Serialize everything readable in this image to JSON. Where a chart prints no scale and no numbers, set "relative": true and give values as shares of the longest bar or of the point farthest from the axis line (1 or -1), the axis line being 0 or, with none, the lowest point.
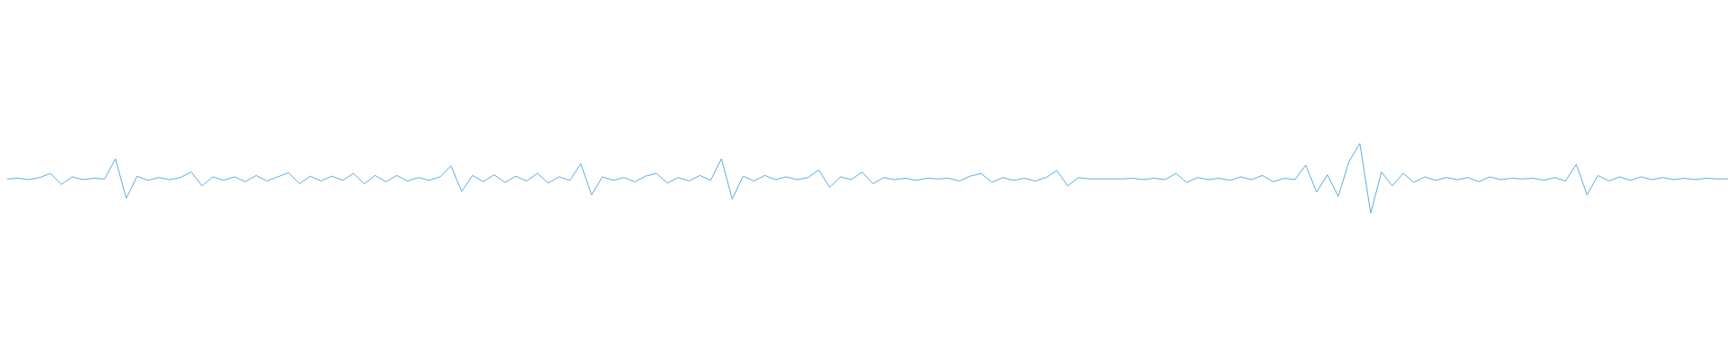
{
  "chart_data": {
    "type": "line",
    "relative": true,
    "color": "#5dade2",
    "marker": "none",
    "grid": false,
    "legend": false,
    "categories": [
      null,
      null,
      null,
      null,
      null,
      null,
      null,
      null,
      null,
      null,
      null,
      null,
      null,
      null,
      null,
      null,
      null,
      null,
      null,
      null,
      null,
      null,
      null,
      null,
      null,
      null,
      null,
      null,
      null,
      null,
      null,
      null,
      null,
      null,
      null,
      null,
      null,
      null,
      null,
      null,
      null,
      null,
      null,
      null,
      null,
      null,
      null,
      null,
      null,
      null,
      null,
      null,
      null,
      null,
      null,
      null,
      null,
      null,
      null,
      null,
      null,
      null,
      null,
      null,
      null,
      null,
      null,
      null,
      null,
      null,
      null,
      null,
      null,
      null,
      null,
      null,
      null,
      null,
      null,
      null,
      null,
      null,
      null,
      null,
      null,
      null,
      null,
      null,
      null,
      null,
      null,
      null,
      null,
      null,
      null,
      null,
      null,
      null,
      null,
      null,
      null,
      null,
      null,
      null,
      null,
      null,
      null,
      null,
      null,
      null,
      null,
      null,
      null,
      null,
      null,
      null,
      null,
      null,
      null,
      null,
      null,
      null,
      null,
      null,
      null,
      null,
      null,
      null,
      null,
      null,
      null,
      null,
      null,
      null,
      null,
      null,
      null,
      null,
      null,
      null,
      null,
      null,
      null,
      null,
      null,
      null,
      null,
      null,
      null,
      null,
      null,
      null,
      null,
      null,
      null,
      null,
      null,
      null,
      null,
      null
    ],
    "values": [
      0.49,
      0.5,
      0.48,
      0.51,
      0.57,
      0.41,
      0.52,
      0.48,
      0.5,
      0.49,
      0.78,
      0.21,
      0.53,
      0.47,
      0.51,
      0.48,
      0.51,
      0.59,
      0.39,
      0.52,
      0.47,
      0.52,
      0.45,
      0.54,
      0.46,
      0.52,
      0.58,
      0.42,
      0.53,
      0.46,
      0.53,
      0.47,
      0.57,
      0.42,
      0.54,
      0.45,
      0.54,
      0.46,
      0.51,
      0.47,
      0.52,
      0.68,
      0.31,
      0.54,
      0.45,
      0.55,
      0.44,
      0.53,
      0.46,
      0.57,
      0.43,
      0.52,
      0.47,
      0.71,
      0.26,
      0.52,
      0.47,
      0.51,
      0.45,
      0.53,
      0.57,
      0.43,
      0.51,
      0.46,
      0.54,
      0.47,
      0.78,
      0.2,
      0.53,
      0.46,
      0.54,
      0.48,
      0.52,
      0.48,
      0.51,
      0.62,
      0.37,
      0.52,
      0.48,
      0.59,
      0.42,
      0.51,
      0.48,
      0.5,
      0.47,
      0.5,
      0.49,
      0.5,
      0.46,
      0.53,
      0.57,
      0.44,
      0.51,
      0.47,
      0.5,
      0.46,
      0.51,
      0.61,
      0.39,
      0.51,
      0.49,
      0.49,
      0.49,
      0.49,
      0.5,
      0.48,
      0.5,
      0.48,
      0.57,
      0.44,
      0.51,
      0.48,
      0.5,
      0.47,
      0.52,
      0.48,
      0.54,
      0.45,
      0.5,
      0.48,
      0.69,
      0.3,
      0.55,
      0.24,
      0.74,
      1,
      0,
      0.59,
      0.39,
      0.57,
      0.44,
      0.52,
      0.47,
      0.51,
      0.48,
      0.51,
      0.45,
      0.52,
      0.48,
      0.5,
      0.49,
      0.5,
      0.47,
      0.51,
      0.46,
      0.7,
      0.26,
      0.54,
      0.46,
      0.52,
      0.47,
      0.52,
      0.48,
      0.51,
      0.48,
      0.5,
      0.48,
      0.5,
      0.49,
      0.49
    ]
  }
}
